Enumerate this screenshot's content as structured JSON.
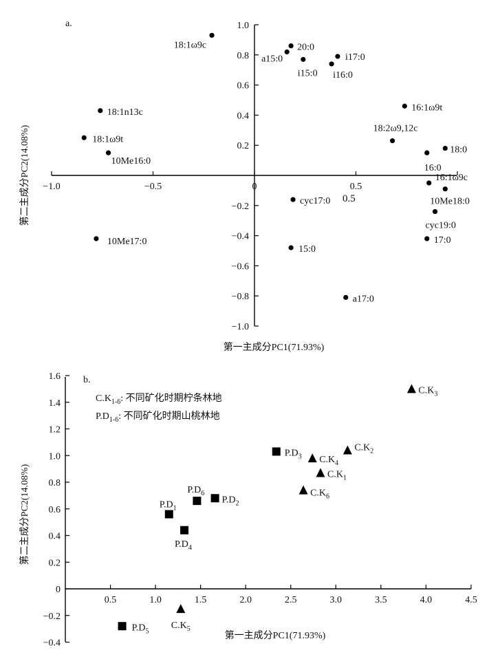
{
  "chart_data": [
    {
      "panel_label": "a.",
      "type": "scatter",
      "xlabel": "第一主成分PC1(71.93%)",
      "ylabel": "第二主成分PC2(14.08%)",
      "xlim": [
        -1.0,
        1.0
      ],
      "ylim": [
        -1.0,
        1.0
      ],
      "x_ticks": [
        "−1.0",
        "−0.5",
        "0",
        "0.5"
      ],
      "y_ticks": [
        "1.0",
        "0.8",
        "0.6",
        "0.4",
        "0.2",
        "−0.2",
        "−0.4",
        "−0.6",
        "−0.8",
        "−1.0"
      ],
      "extra_label": "0.5",
      "grid": false,
      "points": [
        {
          "label": "18:1ω9c",
          "x": -0.21,
          "y": 0.93
        },
        {
          "label": "20:0",
          "x": 0.18,
          "y": 0.86
        },
        {
          "label": "a15:0",
          "x": 0.16,
          "y": 0.82
        },
        {
          "label": "i17:0",
          "x": 0.41,
          "y": 0.79
        },
        {
          "label": "i15:0",
          "x": 0.24,
          "y": 0.77
        },
        {
          "label": "i16:0",
          "x": 0.38,
          "y": 0.74
        },
        {
          "label": "18:1n13c",
          "x": -0.76,
          "y": 0.43
        },
        {
          "label": "16:1ω9t",
          "x": 0.74,
          "y": 0.46
        },
        {
          "label": "18:1ω9t",
          "x": -0.84,
          "y": 0.25
        },
        {
          "label": "18:2ω9,12c",
          "x": 0.68,
          "y": 0.23
        },
        {
          "label": "18:0",
          "x": 0.94,
          "y": 0.18
        },
        {
          "label": "10Me16:0",
          "x": -0.72,
          "y": 0.15
        },
        {
          "label": "16:0",
          "x": 0.85,
          "y": 0.15
        },
        {
          "label": "16:1ω9c",
          "x": 0.86,
          "y": -0.05
        },
        {
          "label": "10Me18:0",
          "x": 0.94,
          "y": -0.09
        },
        {
          "label": "cyc17:0",
          "x": 0.19,
          "y": -0.16
        },
        {
          "label": "cyc19:0",
          "x": 0.89,
          "y": -0.24
        },
        {
          "label": "10Me17:0",
          "x": -0.78,
          "y": -0.42
        },
        {
          "label": "17:0",
          "x": 0.85,
          "y": -0.42
        },
        {
          "label": "15:0",
          "x": 0.18,
          "y": -0.48
        },
        {
          "label": "a17:0",
          "x": 0.45,
          "y": -0.81
        }
      ]
    },
    {
      "panel_label": "b.",
      "type": "scatter",
      "xlabel": "第一主成分PC1(71.93%)",
      "ylabel": "第二主成分PC2(14.08%)",
      "xlim": [
        0,
        4.5
      ],
      "ylim": [
        -0.4,
        1.6
      ],
      "x_ticks": [
        "0.5",
        "1.0",
        "1.5",
        "2.0",
        "2.5",
        "3.0",
        "3.5",
        "4.0",
        "4.5"
      ],
      "y_ticks": [
        "1.6",
        "1.4",
        "1.2",
        "1.0",
        "0.8",
        "0.6",
        "0.4",
        "0.2",
        "0",
        "−0.2",
        "−0.4"
      ],
      "grid": false,
      "legend": [
        {
          "main": "C.K",
          "sub": "1-6",
          "text": ": 不同矿化时期柠条林地"
        },
        {
          "main": "P.D",
          "sub": "1-6",
          "text": ": 不同矿化时期山桃林地"
        }
      ],
      "series": [
        {
          "marker": "triangle",
          "points": [
            {
              "main": "C.K",
              "sub": "1",
              "x": 2.83,
              "y": 0.87
            },
            {
              "main": "C.K",
              "sub": "2",
              "x": 3.13,
              "y": 1.04
            },
            {
              "main": "C.K",
              "sub": "3",
              "x": 3.84,
              "y": 1.5
            },
            {
              "main": "C.K",
              "sub": "4",
              "x": 2.74,
              "y": 0.98
            },
            {
              "main": "C.K",
              "sub": "5",
              "x": 1.28,
              "y": -0.15
            },
            {
              "main": "C.K",
              "sub": "6",
              "x": 2.64,
              "y": 0.74
            }
          ]
        },
        {
          "marker": "square",
          "points": [
            {
              "main": "P.D",
              "sub": "1",
              "x": 1.15,
              "y": 0.56
            },
            {
              "main": "P.D",
              "sub": "2",
              "x": 1.66,
              "y": 0.68
            },
            {
              "main": "P.D",
              "sub": "3",
              "x": 2.34,
              "y": 1.03
            },
            {
              "main": "P.D",
              "sub": "4",
              "x": 1.32,
              "y": 0.44
            },
            {
              "main": "P.D",
              "sub": "5",
              "x": 0.63,
              "y": -0.28
            },
            {
              "main": "P.D",
              "sub": "6",
              "x": 1.46,
              "y": 0.66
            }
          ]
        }
      ]
    }
  ]
}
